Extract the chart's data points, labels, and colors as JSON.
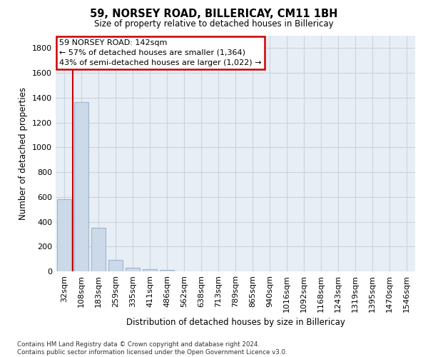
{
  "title1": "59, NORSEY ROAD, BILLERICAY, CM11 1BH",
  "title2": "Size of property relative to detached houses in Billericay",
  "xlabel": "Distribution of detached houses by size in Billericay",
  "ylabel": "Number of detached properties",
  "categories": [
    "32sqm",
    "108sqm",
    "183sqm",
    "259sqm",
    "335sqm",
    "411sqm",
    "486sqm",
    "562sqm",
    "638sqm",
    "713sqm",
    "789sqm",
    "865sqm",
    "940sqm",
    "1016sqm",
    "1092sqm",
    "1168sqm",
    "1243sqm",
    "1319sqm",
    "1395sqm",
    "1470sqm",
    "1546sqm"
  ],
  "values": [
    580,
    1364,
    350,
    90,
    30,
    18,
    10,
    0,
    0,
    0,
    0,
    0,
    0,
    0,
    0,
    0,
    0,
    0,
    0,
    0,
    0
  ],
  "bar_color": "#ccd9e8",
  "bar_edge_color": "#9fb5cc",
  "vline_x": 0.5,
  "vline_color": "#cc0000",
  "annotation_line1": "59 NORSEY ROAD: 142sqm",
  "annotation_line2": "← 57% of detached houses are smaller (1,364)",
  "annotation_line3": "43% of semi-detached houses are larger (1,022) →",
  "annotation_box_color": "#ffffff",
  "annotation_box_edge": "#cc0000",
  "ylim": [
    0,
    1900
  ],
  "yticks": [
    0,
    200,
    400,
    600,
    800,
    1000,
    1200,
    1400,
    1600,
    1800
  ],
  "footer1": "Contains HM Land Registry data © Crown copyright and database right 2024.",
  "footer2": "Contains public sector information licensed under the Open Government Licence v3.0.",
  "bg_color": "#ffffff",
  "plot_bg_color": "#e8eef5",
  "grid_color": "#c8d4e0",
  "fig_width": 6.0,
  "fig_height": 5.0
}
